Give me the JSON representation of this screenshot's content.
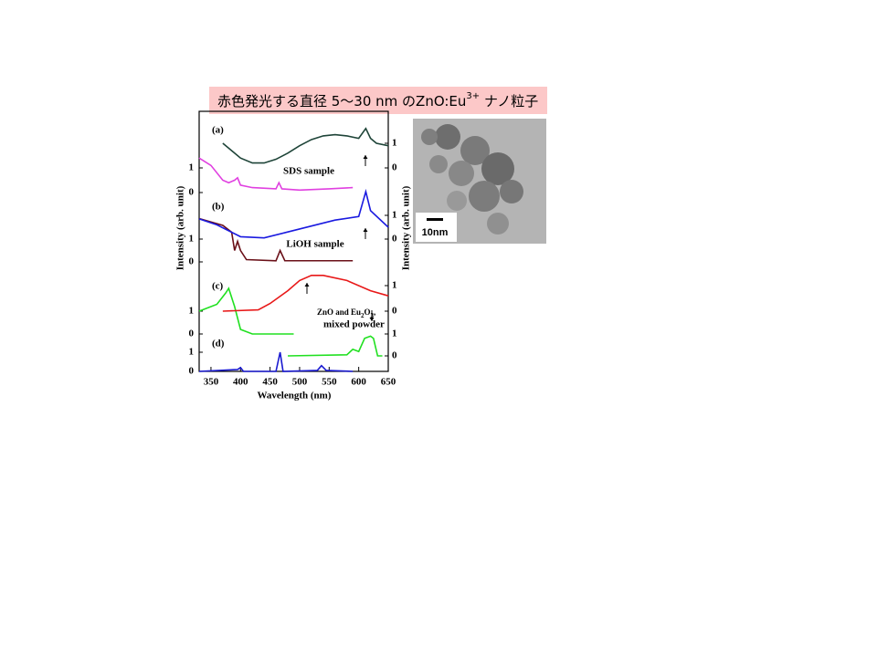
{
  "slide_title": {
    "main": "赤色発光する直径 5～30 nm のZnO:Eu",
    "sup": "3+",
    "tail": " ナノ粒子"
  },
  "scale_bar_label": "10nm",
  "chart_data": [
    {
      "type": "line",
      "label": "(a)",
      "annotation": "SDS sample",
      "yticks": [
        0,
        1
      ],
      "y2ticks": [
        0,
        1
      ],
      "series": [
        {
          "color": "#e040e0",
          "x": [
            330,
            350,
            370,
            380,
            390,
            395,
            400,
            420,
            460,
            465,
            470,
            500,
            550,
            590
          ],
          "values": [
            1.4,
            1.1,
            0.5,
            0.4,
            0.5,
            0.6,
            0.3,
            0.2,
            0.15,
            0.4,
            0.15,
            0.1,
            0.15,
            0.2
          ]
        },
        {
          "color": "#1e4438",
          "axis": "y2",
          "x": [
            370,
            380,
            400,
            420,
            440,
            460,
            480,
            500,
            520,
            540,
            560,
            580,
            600,
            612,
            620,
            630,
            650
          ],
          "values": [
            1.0,
            0.8,
            0.4,
            0.2,
            0.2,
            0.35,
            0.6,
            0.9,
            1.15,
            1.3,
            1.35,
            1.3,
            1.2,
            1.6,
            1.2,
            1.0,
            0.9
          ]
        }
      ]
    },
    {
      "type": "line",
      "label": "(b)",
      "annotation": "LiOH sample",
      "yticks": [
        0,
        1
      ],
      "y2ticks": [
        0,
        1
      ],
      "series": [
        {
          "color": "#6a1018",
          "x": [
            330,
            370,
            385,
            390,
            395,
            400,
            410,
            460,
            467,
            475,
            590
          ],
          "values": [
            1.9,
            1.6,
            1.3,
            0.5,
            0.9,
            0.5,
            0.1,
            0.05,
            0.5,
            0.05,
            0.05
          ]
        },
        {
          "color": "#1a1ae0",
          "axis": "y2",
          "x": [
            330,
            360,
            400,
            440,
            480,
            520,
            560,
            600,
            612,
            620,
            650
          ],
          "values": [
            0.85,
            0.6,
            0.1,
            0.05,
            0.3,
            0.55,
            0.8,
            0.95,
            2.0,
            1.2,
            0.5
          ]
        }
      ]
    },
    {
      "type": "line",
      "label": "(c)",
      "annotation_parts": [
        "ZnO and Eu",
        "2",
        "O",
        "3",
        ","
      ],
      "annotation2": "mixed powder",
      "yticks": [
        0,
        1
      ],
      "y2ticks": [
        0,
        1
      ],
      "series": [
        {
          "color": "#20e020",
          "x": [
            330,
            360,
            375,
            380,
            390,
            400,
            420,
            490
          ],
          "values": [
            1.0,
            1.3,
            1.8,
            2.0,
            1.2,
            0.2,
            0.0,
            0.0
          ]
        },
        {
          "color": "#e81818",
          "axis": "y2",
          "x": [
            370,
            430,
            450,
            480,
            500,
            520,
            540,
            580,
            620,
            650
          ],
          "values": [
            0.0,
            0.05,
            0.3,
            0.8,
            1.2,
            1.4,
            1.4,
            1.2,
            0.8,
            0.6
          ]
        }
      ]
    },
    {
      "type": "line",
      "label": "(d)",
      "yticks": [
        0,
        1
      ],
      "y2ticks": [
        0,
        1
      ],
      "xlabel": "Wavelength (nm)",
      "ylabel": "Intensity (arb. unit)",
      "y2label": "Intensity (arb. unit)",
      "xlim": [
        330,
        650
      ],
      "xticks": [
        350,
        400,
        450,
        500,
        550,
        600,
        650
      ],
      "series": [
        {
          "color": "#1a1ad0",
          "x": [
            330,
            395,
            400,
            405,
            460,
            467,
            472,
            530,
            537,
            545,
            590
          ],
          "values": [
            0,
            0.1,
            0.2,
            0,
            0,
            1.0,
            0,
            0.05,
            0.3,
            0.05,
            0
          ]
        },
        {
          "color": "#20e020",
          "axis": "y2",
          "x": [
            480,
            580,
            590,
            600,
            610,
            620,
            625,
            632,
            640
          ],
          "values": [
            0,
            0.05,
            0.3,
            0.2,
            0.8,
            0.9,
            0.8,
            0.0,
            0.0
          ]
        }
      ]
    }
  ]
}
